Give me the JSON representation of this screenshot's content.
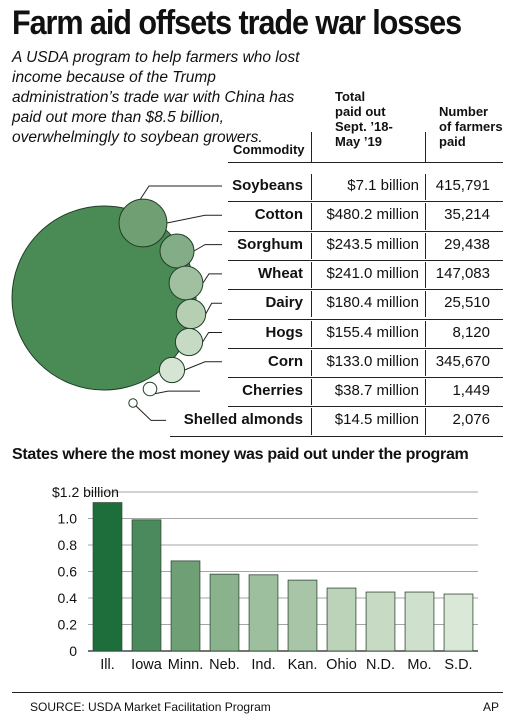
{
  "title": "Farm aid offsets trade war losses",
  "subtitle": "A USDA program to help farmers who lost income because of the Trump administration’s trade war with China has paid out more than $8.5 billion, overwhelmingly to soybean growers.",
  "table": {
    "headers": {
      "commodity": "Commodity",
      "total": "Total\npaid out\nSept. ’18-\nMay ’19",
      "farmers": "Number\nof farmers\npaid"
    },
    "rows": [
      {
        "commodity": "Soybeans",
        "total": "$7.1 billion",
        "farmers": "415,791",
        "amount_millions": 7100
      },
      {
        "commodity": "Cotton",
        "total": "$480.2 million",
        "farmers": "35,214",
        "amount_millions": 480.2
      },
      {
        "commodity": "Sorghum",
        "total": "$243.5 million",
        "farmers": "29,438",
        "amount_millions": 243.5
      },
      {
        "commodity": "Wheat",
        "total": "$241.0 million",
        "farmers": "147,083",
        "amount_millions": 241.0
      },
      {
        "commodity": "Dairy",
        "total": "$180.4 million",
        "farmers": "25,510",
        "amount_millions": 180.4
      },
      {
        "commodity": "Hogs",
        "total": "$155.4 million",
        "farmers": "8,120",
        "amount_millions": 155.4
      },
      {
        "commodity": "Corn",
        "total": "$133.0 million",
        "farmers": "345,670",
        "amount_millions": 133.0
      },
      {
        "commodity": "Cherries",
        "total": "$38.7 million",
        "farmers": "1,449",
        "amount_millions": 38.7
      },
      {
        "commodity": "Shelled almonds",
        "total": "$14.5 million",
        "farmers": "2,076",
        "amount_millions": 14.5
      }
    ]
  },
  "bubble_colors": [
    "#4a8a55",
    "#6f9f73",
    "#83ad86",
    "#a0c09f",
    "#b6cfb3",
    "#c7dbc4",
    "#d6e5d3",
    "#ffffff",
    "#ffffff"
  ],
  "section_title": "States where the most money was paid out under the program",
  "chart_data": {
    "type": "bar",
    "title": "States where the most money was paid out under the program",
    "categories": [
      "Ill.",
      "Iowa",
      "Minn.",
      "Neb.",
      "Ind.",
      "Kan.",
      "Ohio",
      "N.D.",
      "Mo.",
      "S.D."
    ],
    "values": [
      1.12,
      0.99,
      0.68,
      0.58,
      0.575,
      0.535,
      0.475,
      0.445,
      0.445,
      0.43
    ],
    "ylim": [
      0,
      1.2
    ],
    "yticks": [
      0,
      0.2,
      0.4,
      0.6,
      0.8,
      1.0,
      1.2
    ],
    "ytick_labels": [
      "0",
      "0.2",
      "0.4",
      "0.6",
      "0.8",
      "1.0",
      "$1.2 billion"
    ],
    "grid": true,
    "bar_colors": [
      "#1d6e3b",
      "#4b8a5c",
      "#6e9f75",
      "#8ab28d",
      "#9dbf9d",
      "#a8c6a7",
      "#bcd3b9",
      "#c6dac4",
      "#cfe0cc",
      "#dae8d7"
    ]
  },
  "footer": {
    "source": "SOURCE: USDA Market Facilitation Program",
    "credit": "AP"
  }
}
